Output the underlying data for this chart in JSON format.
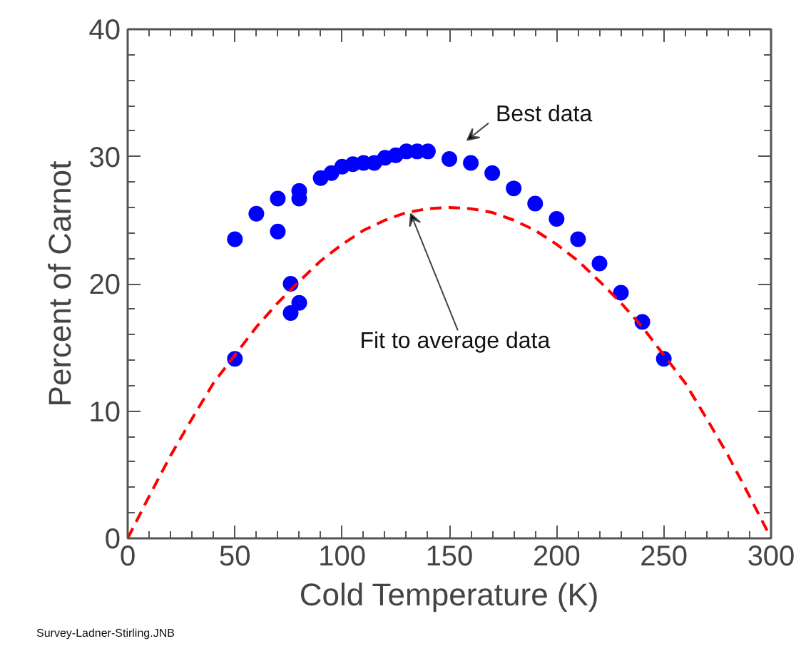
{
  "chart_data": {
    "type": "scatter",
    "xlabel": "Cold Temperature (K)",
    "ylabel": "Percent of Carnot",
    "xlim": [
      0,
      300
    ],
    "ylim": [
      0,
      40
    ],
    "xticks": [
      0,
      50,
      100,
      150,
      200,
      250,
      300
    ],
    "yticks": [
      0,
      10,
      20,
      30,
      40
    ],
    "grid": false,
    "series": [
      {
        "marker": "circle",
        "color": "#0000ff",
        "x": [
          50,
          50,
          60,
          70,
          70,
          76,
          76,
          80,
          80,
          80,
          90,
          95,
          100,
          105,
          110,
          115,
          120,
          125,
          130,
          135,
          140,
          150,
          160,
          170,
          180,
          190,
          200,
          210,
          220,
          230,
          240,
          250
        ],
        "values": [
          23.5,
          14.1,
          25.5,
          26.7,
          24.1,
          20.0,
          17.7,
          27.3,
          26.7,
          18.5,
          28.3,
          28.7,
          29.2,
          29.4,
          29.5,
          29.5,
          29.9,
          30.1,
          30.4,
          30.4,
          30.4,
          29.8,
          29.5,
          28.7,
          27.5,
          26.3,
          25.1,
          23.5,
          21.6,
          19.3,
          17.0,
          14.1
        ]
      },
      {
        "type": "line",
        "color": "#ff0000",
        "line_style": "dashed",
        "x": [
          0,
          10,
          20,
          30,
          40,
          50,
          60,
          70,
          80,
          90,
          100,
          110,
          120,
          130,
          140,
          150,
          160,
          170,
          180,
          190,
          200,
          210,
          220,
          230,
          240,
          250,
          260,
          270,
          280,
          290,
          300
        ],
        "values": [
          0,
          3.3,
          6.5,
          9.4,
          12.2,
          14.4,
          16.6,
          18.5,
          20.2,
          21.8,
          23.1,
          24.2,
          25.0,
          25.6,
          25.9,
          26.0,
          25.9,
          25.6,
          25.0,
          24.2,
          23.1,
          21.8,
          20.2,
          18.5,
          16.6,
          14.4,
          12.2,
          9.4,
          6.5,
          3.3,
          0
        ]
      }
    ],
    "annotations": [
      "Best data",
      {
        "text": "Fit to average data",
        "x": 132,
        "y": 25.5
      },
      "Survey-Ladner-Stirling.JNB"
    ]
  }
}
